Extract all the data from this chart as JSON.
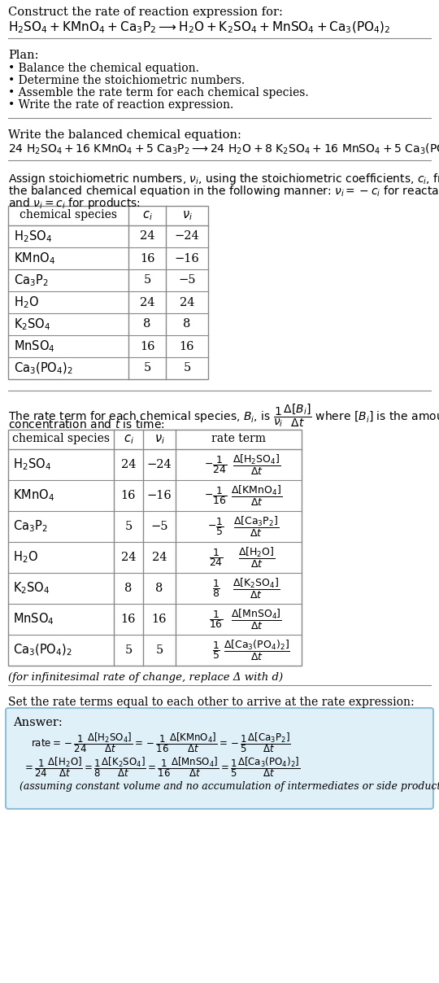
{
  "title": "Construct the rate of reaction expression for:",
  "bg_color": "#ffffff",
  "table_border_color": "#888888",
  "separator_color": "#888888",
  "answer_box_color": "#dff0f8",
  "answer_box_border": "#90c0d8",
  "table1_rows": [
    [
      "H₂SO₄",
      "24",
      "−24"
    ],
    [
      "KMnO₄",
      "16",
      "−16"
    ],
    [
      "Ca₃P₂",
      "5",
      "−5"
    ],
    [
      "H₂O",
      "24",
      "24"
    ],
    [
      "K₂SO₄",
      "8",
      "8"
    ],
    [
      "MnSO₄",
      "16",
      "16"
    ],
    [
      "Ca₃(PO₄)₂",
      "5",
      "5"
    ]
  ],
  "table2_rows": [
    [
      "H₂SO₄",
      "24",
      "−24"
    ],
    [
      "KMnO₄",
      "16",
      "−16"
    ],
    [
      "Ca₃P₂",
      "5",
      "−5"
    ],
    [
      "H₂O",
      "24",
      "24"
    ],
    [
      "K₂SO₄",
      "8",
      "8"
    ],
    [
      "MnSO₄",
      "16",
      "16"
    ],
    [
      "Ca₃(PO₄)₂",
      "5",
      "5"
    ]
  ]
}
